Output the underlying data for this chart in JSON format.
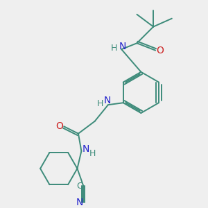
{
  "bg_color": "#efefef",
  "bond_color": "#3d8b7a",
  "atom_N_color": "#2222cc",
  "atom_O_color": "#cc2222",
  "atom_C_color": "#3d8b7a",
  "bond_width": 1.4,
  "fig_size": [
    3.0,
    3.0
  ],
  "dpi": 100,
  "xlim": [
    0,
    10
  ],
  "ylim": [
    0,
    10
  ]
}
